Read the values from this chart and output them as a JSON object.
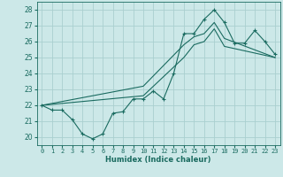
{
  "title": "",
  "xlabel": "Humidex (Indice chaleur)",
  "xlim": [
    -0.5,
    23.5
  ],
  "ylim": [
    19.5,
    28.5
  ],
  "xticks": [
    0,
    1,
    2,
    3,
    4,
    5,
    6,
    7,
    8,
    9,
    10,
    11,
    12,
    13,
    14,
    15,
    16,
    17,
    18,
    19,
    20,
    21,
    22,
    23
  ],
  "yticks": [
    20,
    21,
    22,
    23,
    24,
    25,
    26,
    27,
    28
  ],
  "bg_color": "#cce8e8",
  "grid_color": "#aacfcf",
  "line_color": "#1a6b60",
  "line1_x": [
    0,
    1,
    2,
    3,
    4,
    5,
    6,
    7,
    8,
    9,
    10,
    11,
    12,
    13,
    14,
    15,
    16,
    17,
    18,
    19,
    20,
    21,
    22,
    23
  ],
  "line1_y": [
    22.0,
    21.7,
    21.7,
    21.1,
    20.2,
    19.9,
    20.2,
    21.5,
    21.6,
    22.4,
    22.4,
    22.9,
    22.4,
    24.0,
    26.5,
    26.5,
    27.4,
    28.0,
    27.2,
    25.9,
    25.9,
    26.7,
    26.0,
    25.2
  ],
  "line2_x": [
    0,
    10,
    14,
    15,
    16,
    17,
    18,
    23
  ],
  "line2_y": [
    22.0,
    22.6,
    25.0,
    25.8,
    26.0,
    26.8,
    25.7,
    25.0
  ],
  "line3_x": [
    0,
    10,
    14,
    15,
    16,
    17,
    18,
    23
  ],
  "line3_y": [
    22.0,
    23.2,
    25.8,
    26.3,
    26.5,
    27.2,
    26.2,
    25.0
  ]
}
